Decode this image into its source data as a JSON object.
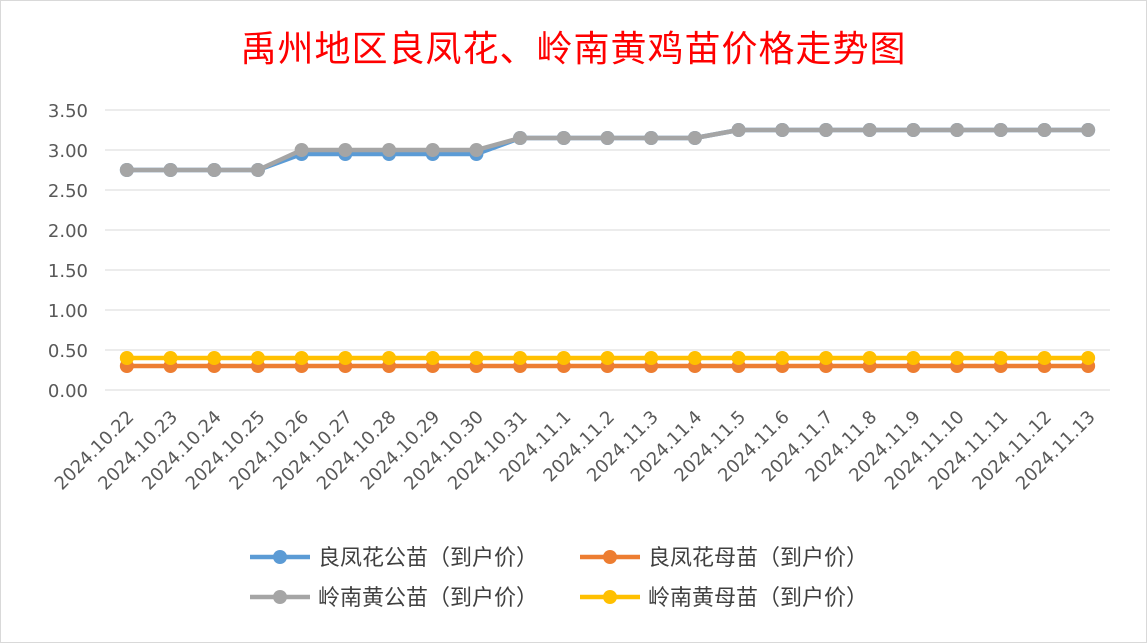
{
  "chart_data": {
    "type": "line",
    "title": "禹州地区良凤花、岭南黄鸡苗价格走势图",
    "xlabel": "",
    "ylabel": "",
    "ylim": [
      0,
      3.5
    ],
    "yticks": [
      "0.00",
      "0.50",
      "1.00",
      "1.50",
      "2.00",
      "2.50",
      "3.00",
      "3.50"
    ],
    "grid": true,
    "legend_position": "bottom",
    "categories": [
      "2024.10.22",
      "2024.10.23",
      "2024.10.24",
      "2024.10.25",
      "2024.10.26",
      "2024.10.27",
      "2024.10.28",
      "2024.10.29",
      "2024.10.30",
      "2024.10.31",
      "2024.11.1",
      "2024.11.2",
      "2024.11.3",
      "2024.11.4",
      "2024.11.5",
      "2024.11.6",
      "2024.11.7",
      "2024.11.8",
      "2024.11.9",
      "2024.11.10",
      "2024.11.11",
      "2024.11.12",
      "2024.11.13"
    ],
    "series": [
      {
        "name": "良凤花公苗（到户价）",
        "color": "#5b9bd5",
        "values": [
          2.75,
          2.75,
          2.75,
          2.75,
          2.95,
          2.95,
          2.95,
          2.95,
          2.95,
          3.15,
          3.15,
          3.15,
          3.15,
          3.15,
          3.25,
          3.25,
          3.25,
          3.25,
          3.25,
          3.25,
          3.25,
          3.25,
          3.25
        ]
      },
      {
        "name": "良凤花母苗（到户价）",
        "color": "#ed7d31",
        "values": [
          0.3,
          0.3,
          0.3,
          0.3,
          0.3,
          0.3,
          0.3,
          0.3,
          0.3,
          0.3,
          0.3,
          0.3,
          0.3,
          0.3,
          0.3,
          0.3,
          0.3,
          0.3,
          0.3,
          0.3,
          0.3,
          0.3,
          0.3
        ]
      },
      {
        "name": "岭南黄公苗（到户价）",
        "color": "#a5a5a5",
        "values": [
          2.75,
          2.75,
          2.75,
          2.75,
          3.0,
          3.0,
          3.0,
          3.0,
          3.0,
          3.15,
          3.15,
          3.15,
          3.15,
          3.15,
          3.25,
          3.25,
          3.25,
          3.25,
          3.25,
          3.25,
          3.25,
          3.25,
          3.25
        ]
      },
      {
        "name": "岭南黄母苗（到户价）",
        "color": "#ffc000",
        "values": [
          0.4,
          0.4,
          0.4,
          0.4,
          0.4,
          0.4,
          0.4,
          0.4,
          0.4,
          0.4,
          0.4,
          0.4,
          0.4,
          0.4,
          0.4,
          0.4,
          0.4,
          0.4,
          0.4,
          0.4,
          0.4,
          0.4,
          0.4
        ]
      }
    ],
    "colors": {
      "title": "#ff0000",
      "grid": "#d9d9d9",
      "tick_text": "#595959"
    }
  }
}
